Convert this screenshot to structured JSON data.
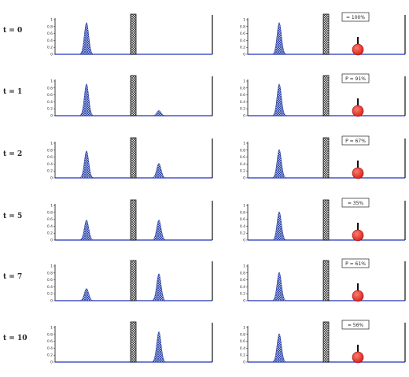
{
  "colors": {
    "baseline": "#2233bb",
    "axis": "#111111",
    "peak_fill": "#6a8fd8",
    "peak_stroke": "#1a2f9a",
    "ball": "#e8312a",
    "ball_stroke": "#990000",
    "barrier_fill": "#cfcfcf",
    "barrier_stroke": "#111111"
  },
  "chart_data": {
    "type": "diagram",
    "rows": [
      {
        "label": "t = 0",
        "legend": "= 100%",
        "left_peaks": [
          {
            "x": 0.2,
            "h": 0.92
          }
        ],
        "right_peaks": [
          {
            "x": 0.2,
            "h": 0.92
          }
        ]
      },
      {
        "label": "t = 1",
        "legend": "P = 91%",
        "left_peaks": [
          {
            "x": 0.2,
            "h": 0.92
          },
          {
            "x": 0.66,
            "h": 0.15
          }
        ],
        "right_peaks": [
          {
            "x": 0.2,
            "h": 0.92
          }
        ]
      },
      {
        "label": "t = 2",
        "legend": "P = 67%",
        "left_peaks": [
          {
            "x": 0.2,
            "h": 0.78
          },
          {
            "x": 0.66,
            "h": 0.42
          }
        ],
        "right_peaks": [
          {
            "x": 0.2,
            "h": 0.82
          }
        ]
      },
      {
        "label": "t = 5",
        "legend": "= 35%",
        "left_peaks": [
          {
            "x": 0.2,
            "h": 0.58
          },
          {
            "x": 0.66,
            "h": 0.58
          }
        ],
        "right_peaks": [
          {
            "x": 0.2,
            "h": 0.82
          }
        ]
      },
      {
        "label": "t = 7",
        "legend": "P = 61%",
        "left_peaks": [
          {
            "x": 0.2,
            "h": 0.35
          },
          {
            "x": 0.66,
            "h": 0.78
          }
        ],
        "right_peaks": [
          {
            "x": 0.2,
            "h": 0.82
          }
        ]
      },
      {
        "label": "t = 10",
        "legend": "= 56%",
        "left_peaks": [
          {
            "x": 0.66,
            "h": 0.88
          }
        ],
        "right_peaks": [
          {
            "x": 0.2,
            "h": 0.82
          }
        ]
      }
    ],
    "y_ticks_first_row": [
      "1",
      "0.8",
      "0.6",
      "0.4",
      "0.2",
      "0"
    ],
    "y_ticks_other_rows": [
      "1",
      "0.8",
      "0.6",
      "0.4",
      "0.2",
      "0"
    ]
  }
}
